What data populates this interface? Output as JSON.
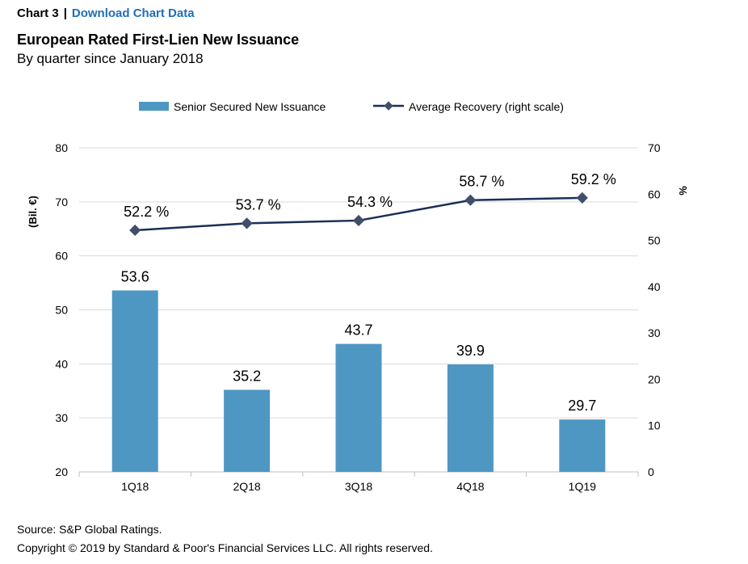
{
  "header": {
    "chart_label": "Chart 3",
    "separator": "|",
    "download_link": "Download Chart Data"
  },
  "title": "European Rated First-Lien New Issuance",
  "subtitle": "By quarter since January 2018",
  "footer": {
    "source": "Source: S&P Global Ratings.",
    "copyright": "Copyright © 2019 by Standard & Poor's Financial Services LLC. All rights reserved."
  },
  "colors": {
    "bar": "#4f97c3",
    "line": "#1b2f56",
    "marker": "#3f4f6a",
    "grid": "#d9d9d9",
    "axis": "#bfbfbf"
  },
  "chart_data": {
    "type": "bar",
    "categories": [
      "1Q18",
      "2Q18",
      "3Q18",
      "4Q18",
      "1Q19"
    ],
    "series": [
      {
        "name": "Senior Secured New Issuance",
        "type": "bar",
        "axis": "left",
        "values": [
          53.6,
          35.2,
          43.7,
          39.9,
          29.7
        ],
        "labels": [
          "53.6",
          "35.2",
          "43.7",
          "39.9",
          "29.7"
        ]
      },
      {
        "name": "Average Recovery (right scale)",
        "type": "line",
        "axis": "right",
        "values": [
          52.2,
          53.7,
          54.3,
          58.7,
          59.2
        ],
        "labels": [
          "52.2 %",
          "53.7 %",
          "54.3 %",
          "58.7 %",
          "59.2 %"
        ]
      }
    ],
    "ylabel": "(Bil. €)",
    "ylim": [
      20,
      80
    ],
    "yticks": [
      "20",
      "30",
      "40",
      "50",
      "60",
      "70",
      "80"
    ],
    "y2label": "%",
    "y2lim": [
      0,
      70
    ],
    "y2ticks": [
      "0",
      "10",
      "20",
      "30",
      "40",
      "50",
      "60",
      "70"
    ],
    "grid": true,
    "legend_position": "top"
  }
}
